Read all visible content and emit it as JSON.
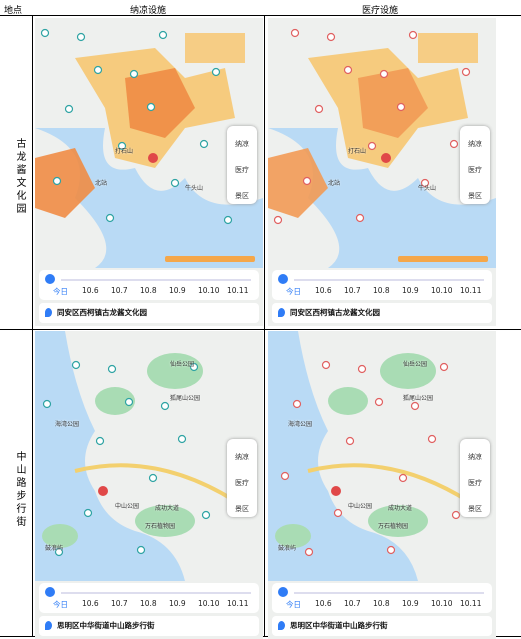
{
  "header": [
    "地点",
    "纳凉设施",
    "医疗设施"
  ],
  "rows": [
    {
      "place": "古龙酱文化园",
      "panels": [
        {
          "map_labels": [
            "打石山",
            "牛头山",
            "北站"
          ],
          "buttons": [
            "纳凉",
            "医疗",
            "景区"
          ],
          "timeline": [
            "今日",
            "10.6",
            "10.7",
            "10.8",
            "10.9",
            "10.10",
            "10.11"
          ],
          "location": "同安区西柯镇古龙酱文化园"
        },
        {
          "map_labels": [
            "打石山",
            "牛头山",
            "北站"
          ],
          "buttons": [
            "纳凉",
            "医疗",
            "景区"
          ],
          "timeline": [
            "今日",
            "10.6",
            "10.7",
            "10.8",
            "10.9",
            "10.10",
            "10.11"
          ],
          "location": "同安区西柯镇古龙酱文化园"
        }
      ]
    },
    {
      "place": "中山路步行街",
      "panels": [
        {
          "map_labels": [
            "仙岳公园",
            "狐尾山公园",
            "海湾公园",
            "中山公园",
            "万石植物园",
            "鼓浪屿",
            "成功大道"
          ],
          "buttons": [
            "纳凉",
            "医疗",
            "景区"
          ],
          "timeline": [
            "今日",
            "10.6",
            "10.7",
            "10.8",
            "10.9",
            "10.10",
            "10.11"
          ],
          "location": "思明区中华街道中山路步行街"
        },
        {
          "map_labels": [
            "仙岳公园",
            "狐尾山公园",
            "海湾公园",
            "中山公园",
            "万石植物园",
            "鼓浪屿",
            "成功大道"
          ],
          "buttons": [
            "纳凉",
            "医疗",
            "景区"
          ],
          "timeline": [
            "今日",
            "10.6",
            "10.7",
            "10.8",
            "10.9",
            "10.10",
            "10.11"
          ],
          "location": "思明区中华街道中山路步行街"
        }
      ]
    }
  ]
}
